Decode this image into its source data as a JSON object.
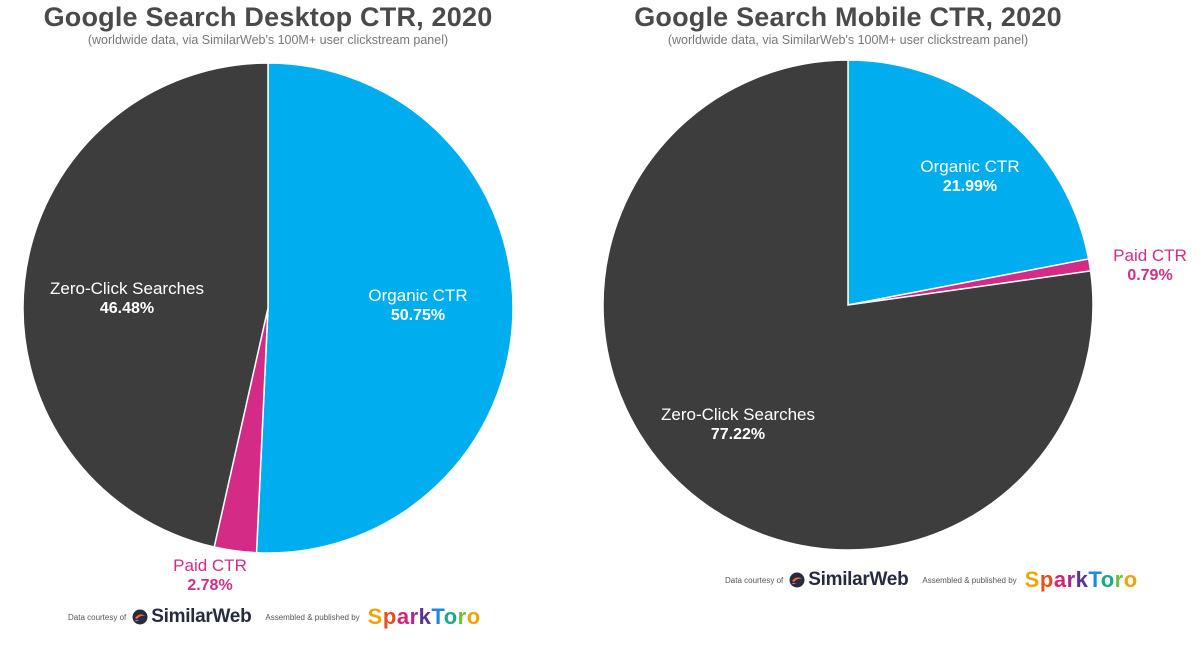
{
  "chart_data": [
    {
      "type": "pie",
      "title": "Google Search Desktop CTR, 2020",
      "subtitle": "(worldwide data, via SimilarWeb's 100M+ user clickstream panel)",
      "slices": [
        {
          "name": "Organic CTR",
          "value": 50.75,
          "label": "50.75%",
          "color": "#00aeef"
        },
        {
          "name": "Paid CTR",
          "value": 2.78,
          "label": "2.78%",
          "color": "#d42c86"
        },
        {
          "name": "Zero-Click Searches",
          "value": 46.48,
          "label": "46.48%",
          "color": "#3d3d3d"
        }
      ]
    },
    {
      "type": "pie",
      "title": "Google Search Mobile CTR, 2020",
      "subtitle": "(worldwide data, via SimilarWeb's 100M+ user clickstream panel)",
      "slices": [
        {
          "name": "Organic CTR",
          "value": 21.99,
          "label": "21.99%",
          "color": "#00aeef"
        },
        {
          "name": "Paid CTR",
          "value": 0.79,
          "label": "0.79%",
          "color": "#d42c86"
        },
        {
          "name": "Zero-Click Searches",
          "value": 77.22,
          "label": "77.22%",
          "color": "#3d3d3d"
        }
      ]
    }
  ],
  "credits": {
    "data_courtesy": "Data courtesy of",
    "similarweb": "SimilarWeb",
    "assembled": "Assembled & published by",
    "sparktoro": "SparkToro"
  }
}
